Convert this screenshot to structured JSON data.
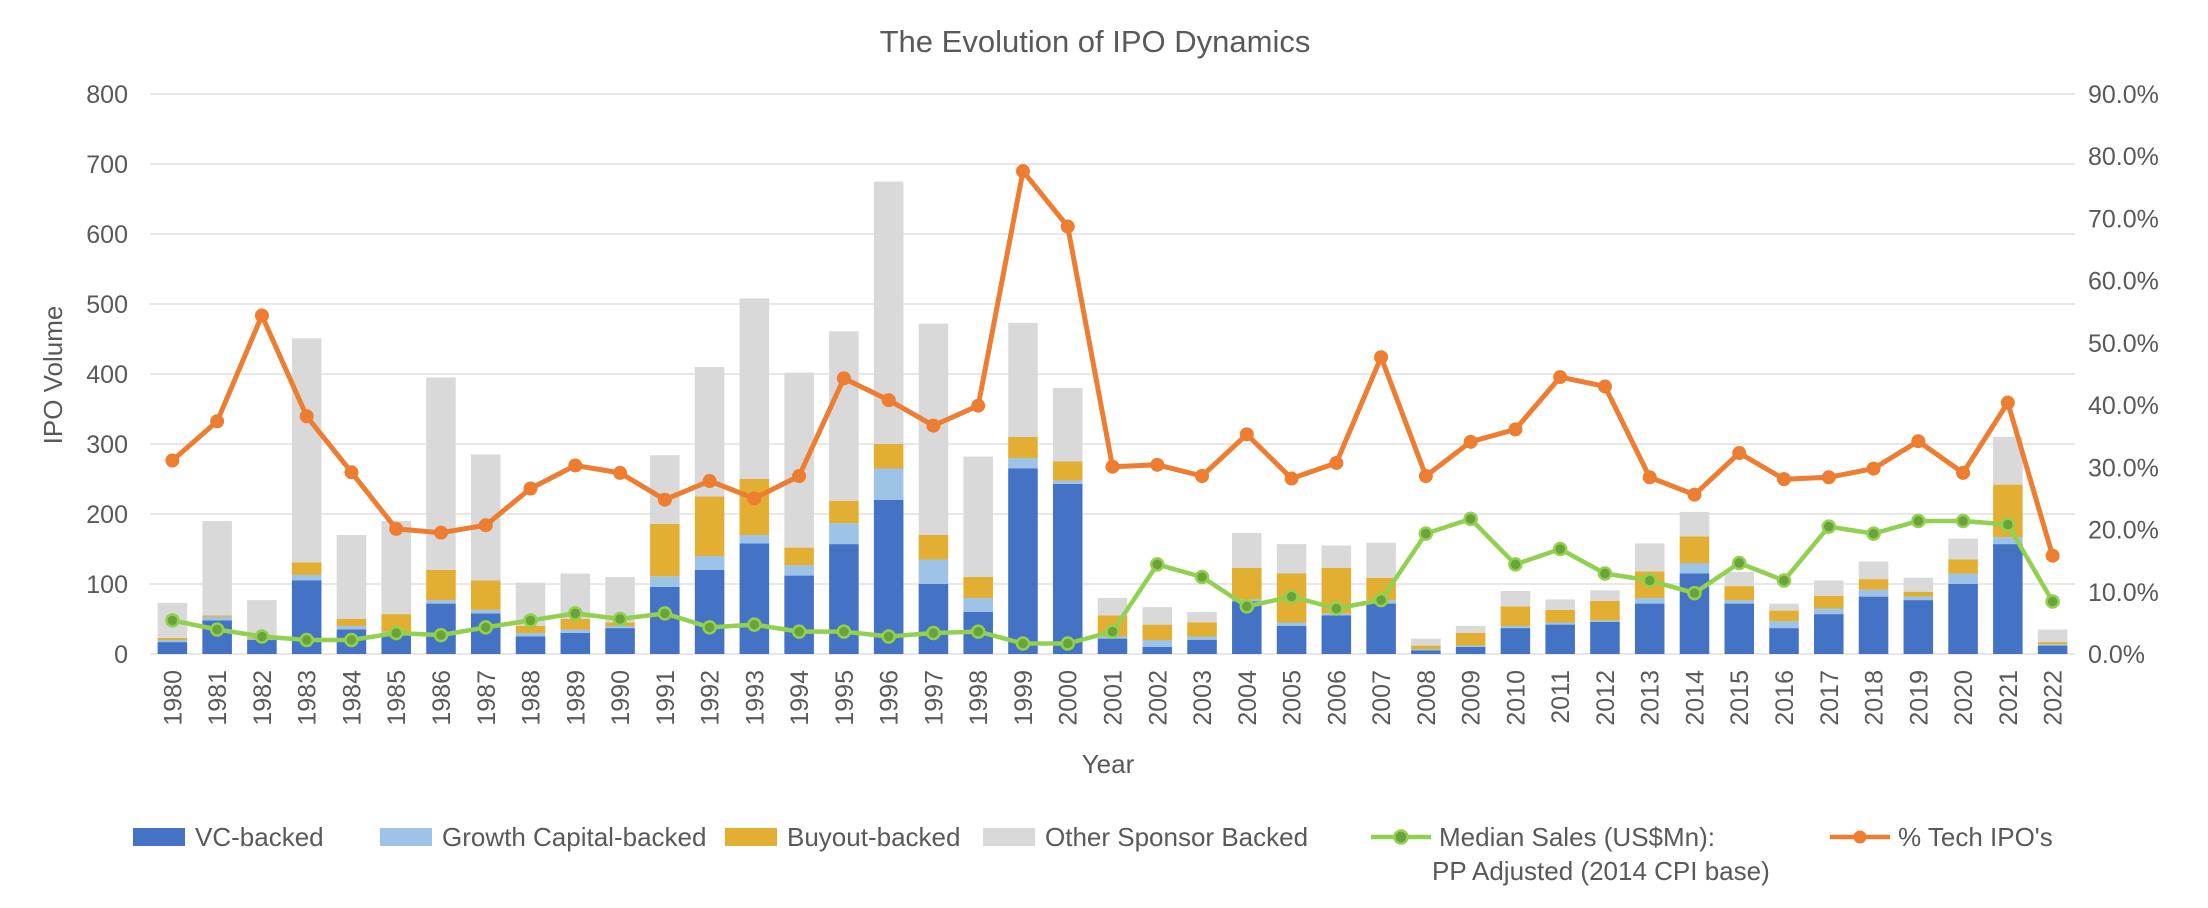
{
  "chart_data": {
    "type": "bar",
    "title": "The Evolution of IPO Dynamics",
    "xlabel": "Year",
    "ylabel": "IPO Volume",
    "ylim": [
      0,
      800
    ],
    "y_ticks": [
      "0",
      "100",
      "200",
      "300",
      "400",
      "500",
      "600",
      "700",
      "800"
    ],
    "y2lim": [
      0,
      90
    ],
    "y2_ticks": [
      "0.0%",
      "10.0%",
      "20.0%",
      "30.0%",
      "40.0%",
      "50.0%",
      "60.0%",
      "70.0%",
      "80.0%",
      "90.0%"
    ],
    "grid": true,
    "legend_position": "bottom",
    "categories": [
      "1980",
      "1981",
      "1982",
      "1983",
      "1984",
      "1985",
      "1986",
      "1987",
      "1988",
      "1989",
      "1990",
      "1991",
      "1992",
      "1993",
      "1994",
      "1995",
      "1996",
      "1997",
      "1998",
      "1999",
      "2000",
      "2001",
      "2002",
      "2003",
      "2004",
      "2005",
      "2006",
      "2007",
      "2008",
      "2009",
      "2010",
      "2011",
      "2012",
      "2013",
      "2014",
      "2015",
      "2016",
      "2017",
      "2018",
      "2019",
      "2020",
      "2021",
      "2022"
    ],
    "stacked_series": [
      {
        "name": "VC-backed",
        "color": "#4472c4",
        "values": [
          17,
          48,
          20,
          105,
          35,
          27,
          72,
          58,
          25,
          30,
          37,
          96,
          120,
          158,
          112,
          157,
          220,
          100,
          60,
          265,
          243,
          22,
          10,
          20,
          75,
          40,
          55,
          72,
          5,
          10,
          37,
          42,
          46,
          72,
          115,
          72,
          37,
          57,
          82,
          77,
          100,
          157,
          12
        ]
      },
      {
        "name": "Growth Capital-backed",
        "color": "#9dc3e6",
        "values": [
          3,
          5,
          2,
          8,
          5,
          5,
          5,
          5,
          5,
          5,
          3,
          15,
          20,
          12,
          15,
          30,
          45,
          35,
          20,
          15,
          5,
          3,
          10,
          5,
          3,
          5,
          3,
          5,
          2,
          2,
          3,
          3,
          2,
          8,
          15,
          5,
          10,
          8,
          10,
          5,
          15,
          10,
          2
        ]
      },
      {
        "name": "Buyout-backed",
        "color": "#e3af32",
        "values": [
          3,
          2,
          2,
          18,
          10,
          25,
          43,
          42,
          10,
          15,
          5,
          75,
          85,
          80,
          25,
          32,
          35,
          35,
          30,
          30,
          27,
          30,
          22,
          20,
          45,
          70,
          65,
          32,
          5,
          18,
          28,
          18,
          28,
          38,
          38,
          20,
          15,
          18,
          15,
          7,
          20,
          75,
          3
        ]
      },
      {
        "name": "Other Sponsor Backed",
        "color": "#d9d9d9",
        "values": [
          50,
          135,
          53,
          320,
          120,
          133,
          275,
          180,
          62,
          65,
          65,
          98,
          185,
          258,
          250,
          242,
          375,
          302,
          172,
          163,
          105,
          25,
          25,
          15,
          50,
          42,
          32,
          50,
          10,
          10,
          22,
          15,
          15,
          40,
          35,
          20,
          10,
          22,
          25,
          20,
          30,
          68,
          18
        ]
      }
    ],
    "line_series": [
      {
        "name": "Median Sales (US$Mn): PP Adjusted (2014 CPI base)",
        "axis": "left",
        "color": "#92d050",
        "values": [
          48,
          35,
          25,
          20,
          20,
          30,
          27,
          38,
          48,
          58,
          50,
          58,
          38,
          42,
          32,
          32,
          25,
          30,
          32,
          15,
          15,
          32,
          128,
          110,
          68,
          82,
          65,
          77,
          172,
          193,
          128,
          150,
          115,
          105,
          87,
          130,
          105,
          182,
          172,
          190,
          190,
          185,
          75
        ]
      },
      {
        "name": "% Tech IPO's",
        "axis": "right",
        "color": "#ed7d31",
        "values": [
          31.1,
          37.4,
          54.4,
          38.2,
          29.2,
          20.1,
          19.5,
          20.7,
          26.6,
          30.3,
          29.1,
          24.8,
          27.8,
          25,
          28.6,
          44.3,
          40.8,
          36.7,
          39.9,
          77.6,
          68.7,
          30.1,
          30.4,
          28.6,
          35.3,
          28.2,
          30.7,
          47.7,
          28.6,
          34.1,
          36.1,
          44.5,
          43,
          28.4,
          25.6,
          32.3,
          28.1,
          28.4,
          29.8,
          34.2,
          29.1,
          40.4,
          15.8
        ]
      }
    ],
    "legend": [
      {
        "label": "VC-backed",
        "kind": "box",
        "color": "#4472c4"
      },
      {
        "label": "Growth Capital-backed",
        "kind": "box",
        "color": "#9dc3e6"
      },
      {
        "label": "Buyout-backed",
        "kind": "box",
        "color": "#e3af32"
      },
      {
        "label": "Other Sponsor Backed",
        "kind": "box",
        "color": "#d9d9d9"
      },
      {
        "label": "Median Sales (US$Mn):",
        "label_line2": "PP Adjusted (2014 CPI base)",
        "kind": "line",
        "color": "#92d050"
      },
      {
        "label": "% Tech IPO's",
        "kind": "line",
        "color": "#ed7d31"
      }
    ]
  }
}
